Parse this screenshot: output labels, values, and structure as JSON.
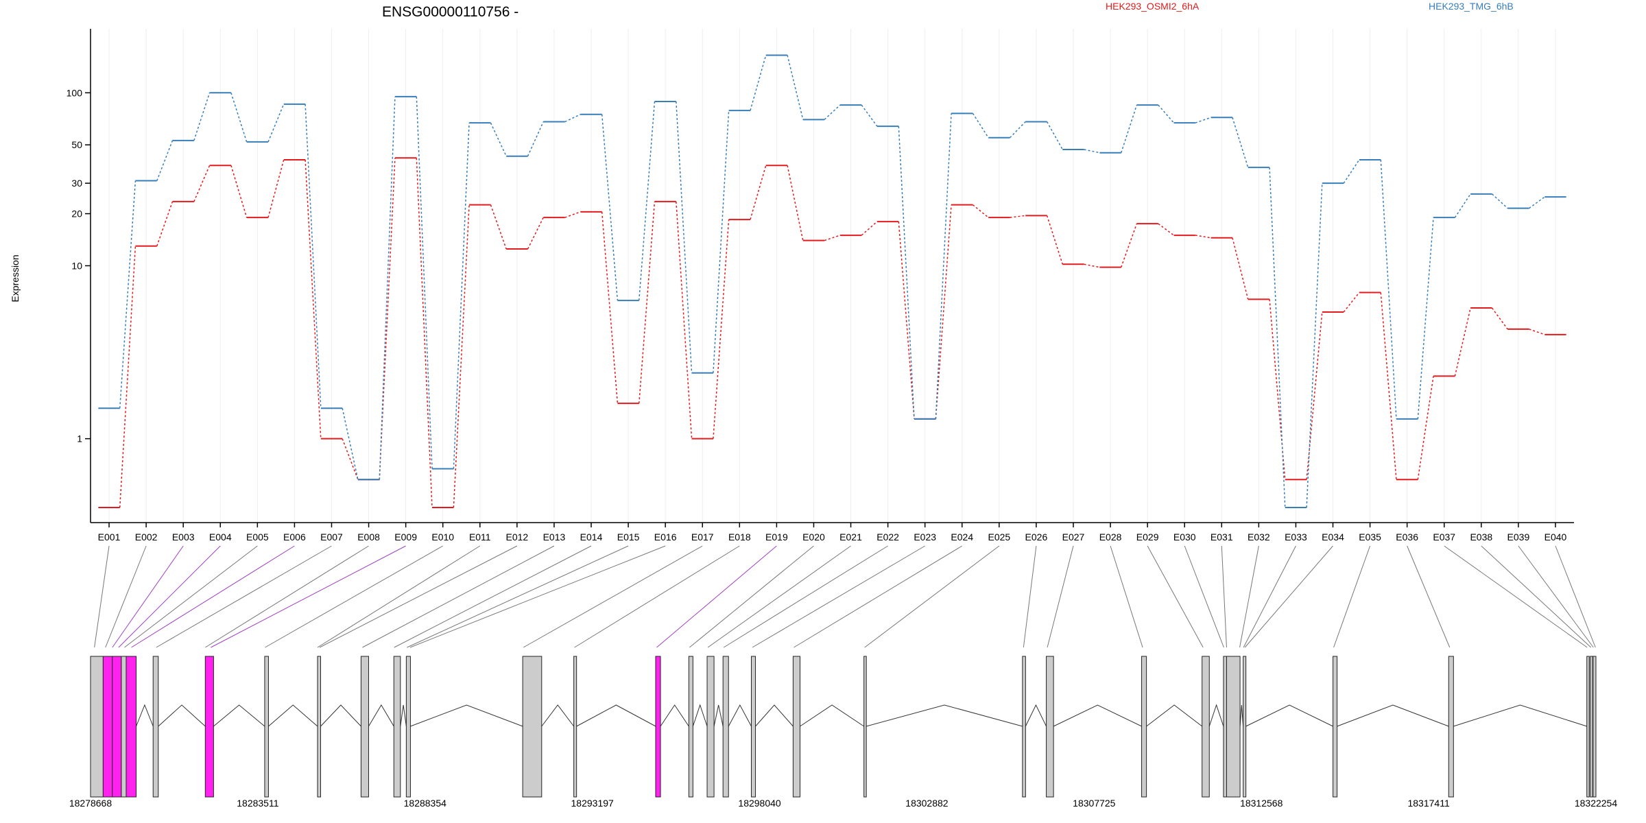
{
  "chart_data": {
    "type": "line",
    "title": "ENSG00000110756 -",
    "ylabel": "Expression",
    "y_scale": "log",
    "ylim": [
      0.4,
      190
    ],
    "yticks": [
      1,
      10,
      20,
      30,
      50,
      100
    ],
    "legend_placement": "top-right",
    "grid": "vertical",
    "categories": [
      "E001",
      "E002",
      "E003",
      "E004",
      "E005",
      "E006",
      "E007",
      "E008",
      "E009",
      "E010",
      "E011",
      "E012",
      "E013",
      "E014",
      "E015",
      "E016",
      "E017",
      "E018",
      "E019",
      "E020",
      "E021",
      "E022",
      "E023",
      "E024",
      "E025",
      "E026",
      "E027",
      "E028",
      "E029",
      "E030",
      "E031",
      "E032",
      "E033",
      "E034",
      "E035",
      "E036",
      "E037",
      "E038",
      "E039",
      "E040"
    ],
    "series": [
      {
        "name": "HEK293_OSMI2_6hA",
        "color": "#e41a1c",
        "values": [
          0.4,
          13.0,
          23.5,
          38.0,
          19.0,
          41.0,
          1.0,
          0.58,
          42.0,
          0.4,
          22.5,
          12.5,
          19.0,
          20.5,
          1.6,
          23.5,
          1.0,
          18.5,
          38.0,
          14.0,
          15.0,
          18.0,
          1.3,
          22.5,
          19.0,
          19.5,
          10.2,
          9.8,
          17.5,
          15.0,
          14.5,
          6.4,
          0.58,
          5.4,
          7.0,
          0.58,
          2.3,
          5.7,
          4.3,
          4.0
        ]
      },
      {
        "name": "HEK293_TMG_6hB",
        "color": "#377eb8",
        "values": [
          1.5,
          31.0,
          53.0,
          100.0,
          52.0,
          86.0,
          1.5,
          0.58,
          95.0,
          0.67,
          67.0,
          43.0,
          68.0,
          75.0,
          6.3,
          89.0,
          2.4,
          79.0,
          165.0,
          70.0,
          85.0,
          64.0,
          1.3,
          76.0,
          55.0,
          68.0,
          47.0,
          45.0,
          85.0,
          67.0,
          72.0,
          37.0,
          0.4,
          30.0,
          41.0,
          1.3,
          19.0,
          26.0,
          21.5,
          25.0
        ]
      }
    ],
    "gene_model": {
      "coordinate_ticks": [
        "18278668",
        "18283511",
        "18288354",
        "18293197",
        "18298040",
        "18302882",
        "18307725",
        "18312568",
        "18317411",
        "18322254"
      ],
      "coordinate_range": [
        18278668,
        18322254
      ],
      "exons": [
        {
          "start": 18278668,
          "end": 18279033,
          "highlight": false
        },
        {
          "start": 18279033,
          "end": 18279300,
          "highlight": true
        },
        {
          "start": 18279300,
          "end": 18279560,
          "highlight": true
        },
        {
          "start": 18279560,
          "end": 18279700,
          "highlight": false
        },
        {
          "start": 18279700,
          "end": 18279990,
          "highlight": true
        },
        {
          "start": 18280480,
          "end": 18280630,
          "highlight": false
        },
        {
          "start": 18281990,
          "end": 18282230,
          "highlight": true
        },
        {
          "start": 18283710,
          "end": 18283820,
          "highlight": false
        },
        {
          "start": 18285240,
          "end": 18285330,
          "highlight": false
        },
        {
          "start": 18286500,
          "end": 18286720,
          "highlight": false
        },
        {
          "start": 18287450,
          "end": 18287640,
          "highlight": false
        },
        {
          "start": 18287810,
          "end": 18287930,
          "highlight": false
        },
        {
          "start": 18291180,
          "end": 18291730,
          "highlight": false
        },
        {
          "start": 18292660,
          "end": 18292740,
          "highlight": false
        },
        {
          "start": 18295030,
          "end": 18295170,
          "highlight": true
        },
        {
          "start": 18295990,
          "end": 18296110,
          "highlight": false
        },
        {
          "start": 18296520,
          "end": 18296720,
          "highlight": false
        },
        {
          "start": 18296980,
          "end": 18297140,
          "highlight": false
        },
        {
          "start": 18297800,
          "end": 18297920,
          "highlight": false
        },
        {
          "start": 18299010,
          "end": 18299210,
          "highlight": false
        },
        {
          "start": 18301060,
          "end": 18301130,
          "highlight": false
        },
        {
          "start": 18305650,
          "end": 18305740,
          "highlight": false
        },
        {
          "start": 18306340,
          "end": 18306550,
          "highlight": false
        },
        {
          "start": 18309100,
          "end": 18309240,
          "highlight": false
        },
        {
          "start": 18310850,
          "end": 18311060,
          "highlight": false
        },
        {
          "start": 18311470,
          "end": 18311560,
          "highlight": false
        },
        {
          "start": 18311560,
          "end": 18311950,
          "highlight": false
        },
        {
          "start": 18312040,
          "end": 18312120,
          "highlight": false
        },
        {
          "start": 18314640,
          "end": 18314760,
          "highlight": false
        },
        {
          "start": 18317990,
          "end": 18318130,
          "highlight": false
        },
        {
          "start": 18321990,
          "end": 18322060,
          "highlight": false
        },
        {
          "start": 18322090,
          "end": 18322160,
          "highlight": false
        },
        {
          "start": 18322170,
          "end": 18322254,
          "highlight": false
        }
      ],
      "connectors": [
        {
          "exon": "E001",
          "gene_pos": 18278780,
          "highlight": false
        },
        {
          "exon": "E002",
          "gene_pos": 18279100,
          "highlight": false
        },
        {
          "exon": "E003",
          "gene_pos": 18279300,
          "highlight": true
        },
        {
          "exon": "E004",
          "gene_pos": 18279480,
          "highlight": true
        },
        {
          "exon": "E005",
          "gene_pos": 18279650,
          "highlight": false
        },
        {
          "exon": "E006",
          "gene_pos": 18279850,
          "highlight": true
        },
        {
          "exon": "E007",
          "gene_pos": 18280570,
          "highlight": false
        },
        {
          "exon": "E008",
          "gene_pos": 18281990,
          "highlight": false
        },
        {
          "exon": "E009",
          "gene_pos": 18282150,
          "highlight": true
        },
        {
          "exon": "E010",
          "gene_pos": 18283720,
          "highlight": false
        },
        {
          "exon": "E011",
          "gene_pos": 18285240,
          "highlight": false
        },
        {
          "exon": "E012",
          "gene_pos": 18285300,
          "highlight": false
        },
        {
          "exon": "E013",
          "gene_pos": 18286540,
          "highlight": false
        },
        {
          "exon": "E014",
          "gene_pos": 18287460,
          "highlight": false
        },
        {
          "exon": "E015",
          "gene_pos": 18287830,
          "highlight": false
        },
        {
          "exon": "E016",
          "gene_pos": 18287920,
          "highlight": false
        },
        {
          "exon": "E017",
          "gene_pos": 18291200,
          "highlight": false
        },
        {
          "exon": "E018",
          "gene_pos": 18292680,
          "highlight": false
        },
        {
          "exon": "E019",
          "gene_pos": 18295060,
          "highlight": true
        },
        {
          "exon": "E020",
          "gene_pos": 18296010,
          "highlight": false
        },
        {
          "exon": "E021",
          "gene_pos": 18296540,
          "highlight": false
        },
        {
          "exon": "E022",
          "gene_pos": 18297000,
          "highlight": false
        },
        {
          "exon": "E023",
          "gene_pos": 18297830,
          "highlight": false
        },
        {
          "exon": "E024",
          "gene_pos": 18299030,
          "highlight": false
        },
        {
          "exon": "E025",
          "gene_pos": 18301080,
          "highlight": false
        },
        {
          "exon": "E026",
          "gene_pos": 18305680,
          "highlight": false
        },
        {
          "exon": "E027",
          "gene_pos": 18306370,
          "highlight": false
        },
        {
          "exon": "E028",
          "gene_pos": 18309130,
          "highlight": false
        },
        {
          "exon": "E029",
          "gene_pos": 18310880,
          "highlight": false
        },
        {
          "exon": "E030",
          "gene_pos": 18311480,
          "highlight": false
        },
        {
          "exon": "E031",
          "gene_pos": 18311560,
          "highlight": false
        },
        {
          "exon": "E032",
          "gene_pos": 18311940,
          "highlight": false
        },
        {
          "exon": "E033",
          "gene_pos": 18312050,
          "highlight": false
        },
        {
          "exon": "E034",
          "gene_pos": 18312090,
          "highlight": false
        },
        {
          "exon": "E035",
          "gene_pos": 18314660,
          "highlight": false
        },
        {
          "exon": "E036",
          "gene_pos": 18318020,
          "highlight": false
        },
        {
          "exon": "E037",
          "gene_pos": 18322000,
          "highlight": false
        },
        {
          "exon": "E038",
          "gene_pos": 18322110,
          "highlight": false
        },
        {
          "exon": "E039",
          "gene_pos": 18322180,
          "highlight": false
        },
        {
          "exon": "E040",
          "gene_pos": 18322240,
          "highlight": false
        }
      ],
      "colors": {
        "exon_fill": "#cccccc",
        "highlight_fill": "#ff22ee",
        "highlight_line": "#a040c0",
        "line": "#777777"
      }
    }
  }
}
